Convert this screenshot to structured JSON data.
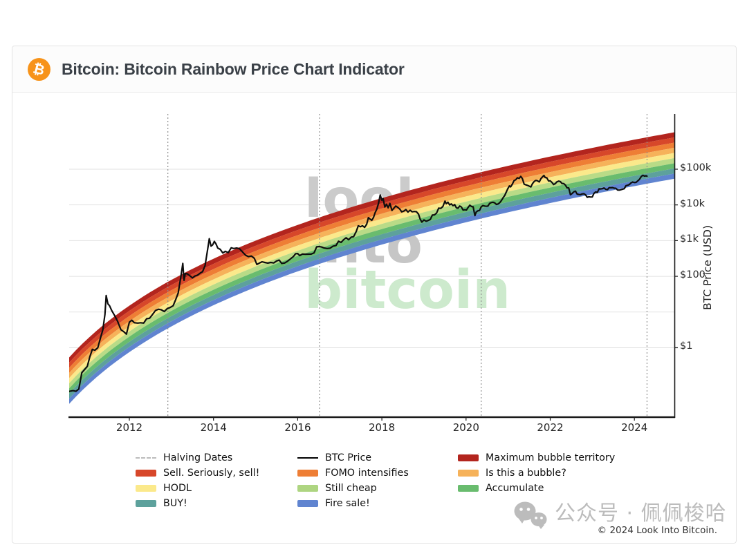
{
  "header": {
    "title": "Bitcoin: Bitcoin Rainbow Price Chart Indicator",
    "logo_glyph": "₿",
    "logo_color": "#f7931a"
  },
  "chart_data": {
    "type": "line",
    "title": "Bitcoin Rainbow Price Chart Indicator",
    "ylabel": "BTC Price (USD)",
    "y_scale": "log10",
    "x_range": [
      2010.57,
      2024.95
    ],
    "y_range_log10": [
      -1.925,
      6.547
    ],
    "grid": "horizontal-decades",
    "gridline_values": [
      1,
      10,
      100,
      1000,
      10000,
      100000
    ],
    "x_ticks": [
      {
        "label": "2012",
        "value": 2012
      },
      {
        "label": "2014",
        "value": 2014
      },
      {
        "label": "2016",
        "value": 2016
      },
      {
        "label": "2018",
        "value": 2018
      },
      {
        "label": "2020",
        "value": 2020
      },
      {
        "label": "2022",
        "value": 2022
      },
      {
        "label": "2024",
        "value": 2024
      }
    ],
    "y_ticks": [
      {
        "label": "$100k",
        "value": 100000
      },
      {
        "label": "$10k",
        "value": 10000
      },
      {
        "label": "$1k",
        "value": 1000
      },
      {
        "label": "$100",
        "value": 100
      },
      {
        "label": "$1",
        "value": 1
      }
    ],
    "halvings": {
      "label": "Halving Dates",
      "color": "#8f8f8f",
      "years": [
        2012.915,
        2016.52,
        2020.36,
        2024.3
      ]
    },
    "rainbow": {
      "genesis_year": 2009.008,
      "center_log10_price_coeffs": {
        "a": 0.289,
        "b": -1.625,
        "c": -2.25,
        "variable": "ln(days since genesis)"
      },
      "half_width_decades": 0.6507,
      "band_height_decades": 0.1446,
      "bands_top_to_bottom": [
        {
          "label": "Maximum bubble territory",
          "color": "#b3251e"
        },
        {
          "label": "Sell. Seriously, sell!",
          "color": "#d7472a"
        },
        {
          "label": "FOMO intensifies",
          "color": "#ee7e35"
        },
        {
          "label": "Is this a bubble?",
          "color": "#f6b25a"
        },
        {
          "label": "HODL",
          "color": "#fbe98b"
        },
        {
          "label": "Still cheap",
          "color": "#b9db87"
        },
        {
          "label": "Accumulate",
          "color": "#69bc6e"
        },
        {
          "label": "BUY!",
          "color": "#5da19c"
        },
        {
          "label": "Fire sale!",
          "color": "#6084d0"
        }
      ]
    },
    "btc_price": {
      "label": "BTC Price",
      "color": "#0e0e0e",
      "points": [
        [
          2010.58,
          0.06
        ],
        [
          2010.66,
          0.063
        ],
        [
          2010.73,
          0.06
        ],
        [
          2010.8,
          0.07
        ],
        [
          2010.87,
          0.2
        ],
        [
          2010.93,
          0.24
        ],
        [
          2011.0,
          0.3
        ],
        [
          2011.06,
          0.55
        ],
        [
          2011.12,
          0.9
        ],
        [
          2011.18,
          0.85
        ],
        [
          2011.25,
          1.0
        ],
        [
          2011.31,
          1.8
        ],
        [
          2011.37,
          3.2
        ],
        [
          2011.42,
          8.5
        ],
        [
          2011.45,
          29
        ],
        [
          2011.49,
          17
        ],
        [
          2011.53,
          15
        ],
        [
          2011.58,
          11
        ],
        [
          2011.65,
          8
        ],
        [
          2011.72,
          5.5
        ],
        [
          2011.8,
          3.2
        ],
        [
          2011.87,
          2.8
        ],
        [
          2011.93,
          2.4
        ],
        [
          2012.0,
          5.2
        ],
        [
          2012.06,
          5.9
        ],
        [
          2012.12,
          5.0
        ],
        [
          2012.2,
          4.9
        ],
        [
          2012.27,
          5.0
        ],
        [
          2012.34,
          4.9
        ],
        [
          2012.41,
          6.5
        ],
        [
          2012.48,
          6.7
        ],
        [
          2012.55,
          8.5
        ],
        [
          2012.62,
          11
        ],
        [
          2012.69,
          12
        ],
        [
          2012.76,
          11.5
        ],
        [
          2012.83,
          10.3
        ],
        [
          2012.9,
          12.5
        ],
        [
          2012.97,
          13.4
        ],
        [
          2013.04,
          15
        ],
        [
          2013.1,
          22
        ],
        [
          2013.16,
          34
        ],
        [
          2013.22,
          90
        ],
        [
          2013.27,
          230
        ],
        [
          2013.3,
          77
        ],
        [
          2013.33,
          120
        ],
        [
          2013.38,
          117
        ],
        [
          2013.44,
          103
        ],
        [
          2013.5,
          90
        ],
        [
          2013.56,
          102
        ],
        [
          2013.62,
          108
        ],
        [
          2013.68,
          122
        ],
        [
          2013.74,
          135
        ],
        [
          2013.8,
          200
        ],
        [
          2013.85,
          480
        ],
        [
          2013.9,
          1130
        ],
        [
          2013.94,
          700
        ],
        [
          2013.98,
          760
        ],
        [
          2014.02,
          950
        ],
        [
          2014.06,
          800
        ],
        [
          2014.1,
          620
        ],
        [
          2014.16,
          570
        ],
        [
          2014.22,
          450
        ],
        [
          2014.28,
          500
        ],
        [
          2014.35,
          460
        ],
        [
          2014.42,
          630
        ],
        [
          2014.48,
          600
        ],
        [
          2014.55,
          620
        ],
        [
          2014.62,
          590
        ],
        [
          2014.69,
          480
        ],
        [
          2014.76,
          390
        ],
        [
          2014.83,
          355
        ],
        [
          2014.9,
          370
        ],
        [
          2014.97,
          320
        ],
        [
          2015.03,
          215
        ],
        [
          2015.09,
          235
        ],
        [
          2015.15,
          255
        ],
        [
          2015.22,
          245
        ],
        [
          2015.29,
          235
        ],
        [
          2015.36,
          245
        ],
        [
          2015.43,
          237
        ],
        [
          2015.5,
          270
        ],
        [
          2015.56,
          285
        ],
        [
          2015.62,
          230
        ],
        [
          2015.69,
          236
        ],
        [
          2015.76,
          265
        ],
        [
          2015.83,
          310
        ],
        [
          2015.9,
          360
        ],
        [
          2015.95,
          430
        ],
        [
          2016.0,
          435
        ],
        [
          2016.05,
          380
        ],
        [
          2016.11,
          420
        ],
        [
          2016.18,
          415
        ],
        [
          2016.25,
          418
        ],
        [
          2016.32,
          420
        ],
        [
          2016.39,
          455
        ],
        [
          2016.45,
          670
        ],
        [
          2016.51,
          680
        ],
        [
          2016.57,
          660
        ],
        [
          2016.63,
          620
        ],
        [
          2016.7,
          600
        ],
        [
          2016.77,
          615
        ],
        [
          2016.84,
          700
        ],
        [
          2016.91,
          730
        ],
        [
          2016.97,
          960
        ],
        [
          2017.03,
          890
        ],
        [
          2017.09,
          1060
        ],
        [
          2017.15,
          1200
        ],
        [
          2017.21,
          1060
        ],
        [
          2017.27,
          1250
        ],
        [
          2017.33,
          1300
        ],
        [
          2017.39,
          1800
        ],
        [
          2017.44,
          2600
        ],
        [
          2017.49,
          2450
        ],
        [
          2017.54,
          2600
        ],
        [
          2017.59,
          2350
        ],
        [
          2017.64,
          2900
        ],
        [
          2017.68,
          4400
        ],
        [
          2017.72,
          4000
        ],
        [
          2017.76,
          3700
        ],
        [
          2017.8,
          4400
        ],
        [
          2017.84,
          6100
        ],
        [
          2017.88,
          7600
        ],
        [
          2017.92,
          11000
        ],
        [
          2017.96,
          19000
        ],
        [
          2018.0,
          13500
        ],
        [
          2018.03,
          15000
        ],
        [
          2018.07,
          8700
        ],
        [
          2018.11,
          10500
        ],
        [
          2018.15,
          8300
        ],
        [
          2018.19,
          11000
        ],
        [
          2018.24,
          7000
        ],
        [
          2018.29,
          8200
        ],
        [
          2018.33,
          9300
        ],
        [
          2018.38,
          8500
        ],
        [
          2018.43,
          7500
        ],
        [
          2018.47,
          6400
        ],
        [
          2018.52,
          6700
        ],
        [
          2018.57,
          7400
        ],
        [
          2018.62,
          6300
        ],
        [
          2018.67,
          7100
        ],
        [
          2018.72,
          6400
        ],
        [
          2018.77,
          6550
        ],
        [
          2018.82,
          6450
        ],
        [
          2018.87,
          5550
        ],
        [
          2018.91,
          4000
        ],
        [
          2018.95,
          3300
        ],
        [
          2019.0,
          3800
        ],
        [
          2019.05,
          3500
        ],
        [
          2019.1,
          3650
        ],
        [
          2019.15,
          3900
        ],
        [
          2019.2,
          5200
        ],
        [
          2019.25,
          5250
        ],
        [
          2019.3,
          5900
        ],
        [
          2019.35,
          8100
        ],
        [
          2019.4,
          8000
        ],
        [
          2019.45,
          9000
        ],
        [
          2019.5,
          12800
        ],
        [
          2019.53,
          10800
        ],
        [
          2019.57,
          11900
        ],
        [
          2019.61,
          10000
        ],
        [
          2019.65,
          10700
        ],
        [
          2019.69,
          9500
        ],
        [
          2019.73,
          10200
        ],
        [
          2019.77,
          8300
        ],
        [
          2019.81,
          8100
        ],
        [
          2019.85,
          9300
        ],
        [
          2019.89,
          8700
        ],
        [
          2019.93,
          7200
        ],
        [
          2019.97,
          7300
        ],
        [
          2020.01,
          7200
        ],
        [
          2020.05,
          8500
        ],
        [
          2020.09,
          9800
        ],
        [
          2020.13,
          9000
        ],
        [
          2020.17,
          8800
        ],
        [
          2020.21,
          5000
        ],
        [
          2020.24,
          6300
        ],
        [
          2020.28,
          6800
        ],
        [
          2020.32,
          7000
        ],
        [
          2020.36,
          8800
        ],
        [
          2020.4,
          9600
        ],
        [
          2020.44,
          9300
        ],
        [
          2020.48,
          9150
        ],
        [
          2020.52,
          9250
        ],
        [
          2020.56,
          11000
        ],
        [
          2020.6,
          11600
        ],
        [
          2020.64,
          11900
        ],
        [
          2020.68,
          11400
        ],
        [
          2020.72,
          10300
        ],
        [
          2020.76,
          10600
        ],
        [
          2020.8,
          11500
        ],
        [
          2020.84,
          13200
        ],
        [
          2020.88,
          15800
        ],
        [
          2020.92,
          18500
        ],
        [
          2020.96,
          23500
        ],
        [
          2021.0,
          29500
        ],
        [
          2021.03,
          34000
        ],
        [
          2021.06,
          32000
        ],
        [
          2021.1,
          38000
        ],
        [
          2021.14,
          48000
        ],
        [
          2021.18,
          50500
        ],
        [
          2021.22,
          57500
        ],
        [
          2021.26,
          55000
        ],
        [
          2021.3,
          63000
        ],
        [
          2021.34,
          54000
        ],
        [
          2021.38,
          38000
        ],
        [
          2021.42,
          36500
        ],
        [
          2021.46,
          35200
        ],
        [
          2021.5,
          33600
        ],
        [
          2021.54,
          31800
        ],
        [
          2021.58,
          39500
        ],
        [
          2021.62,
          45500
        ],
        [
          2021.66,
          48500
        ],
        [
          2021.7,
          47200
        ],
        [
          2021.74,
          44000
        ],
        [
          2021.78,
          54500
        ],
        [
          2021.82,
          61500
        ],
        [
          2021.85,
          67000
        ],
        [
          2021.88,
          58500
        ],
        [
          2021.92,
          57200
        ],
        [
          2021.96,
          46800
        ],
        [
          2022.0,
          47300
        ],
        [
          2022.04,
          42800
        ],
        [
          2022.08,
          37200
        ],
        [
          2022.12,
          39300
        ],
        [
          2022.16,
          44200
        ],
        [
          2022.2,
          46500
        ],
        [
          2022.24,
          45100
        ],
        [
          2022.28,
          40000
        ],
        [
          2022.32,
          39500
        ],
        [
          2022.36,
          36000
        ],
        [
          2022.4,
          30100
        ],
        [
          2022.44,
          29700
        ],
        [
          2022.48,
          19200
        ],
        [
          2022.52,
          20800
        ],
        [
          2022.56,
          23200
        ],
        [
          2022.6,
          24300
        ],
        [
          2022.64,
          20100
        ],
        [
          2022.68,
          19600
        ],
        [
          2022.72,
          19400
        ],
        [
          2022.76,
          20300
        ],
        [
          2022.8,
          20600
        ],
        [
          2022.84,
          19100
        ],
        [
          2022.88,
          16300
        ],
        [
          2022.92,
          16900
        ],
        [
          2022.96,
          16600
        ],
        [
          2023.0,
          16700
        ],
        [
          2023.04,
          21100
        ],
        [
          2023.08,
          23200
        ],
        [
          2023.12,
          22300
        ],
        [
          2023.16,
          28200
        ],
        [
          2023.2,
          28000
        ],
        [
          2023.24,
          28500
        ],
        [
          2023.28,
          29800
        ],
        [
          2023.32,
          27200
        ],
        [
          2023.36,
          26700
        ],
        [
          2023.4,
          30400
        ],
        [
          2023.44,
          30200
        ],
        [
          2023.48,
          30500
        ],
        [
          2023.52,
          29400
        ],
        [
          2023.56,
          29200
        ],
        [
          2023.6,
          26100
        ],
        [
          2023.64,
          25900
        ],
        [
          2023.68,
          26600
        ],
        [
          2023.72,
          27600
        ],
        [
          2023.76,
          28400
        ],
        [
          2023.8,
          34600
        ],
        [
          2023.84,
          35500
        ],
        [
          2023.88,
          37200
        ],
        [
          2023.92,
          41300
        ],
        [
          2023.96,
          43800
        ],
        [
          2024.0,
          42300
        ],
        [
          2024.04,
          42900
        ],
        [
          2024.08,
          47100
        ],
        [
          2024.12,
          52000
        ],
        [
          2024.16,
          61500
        ],
        [
          2024.2,
          67800
        ],
        [
          2024.24,
          63900
        ],
        [
          2024.28,
          65300
        ],
        [
          2024.3,
          63800
        ]
      ]
    },
    "watermark_lines": [
      {
        "text": "look",
        "color": "#cbcbcb"
      },
      {
        "text": "into",
        "color": "#c6c6c6"
      },
      {
        "text": "bitcoin",
        "color": "#cdeacd"
      }
    ]
  },
  "legend": {
    "columns": [
      [
        {
          "label": "Halving Dates",
          "style": "dash",
          "color": "#bbbbbb"
        },
        {
          "label": "Sell. Seriously, sell!",
          "style": "band",
          "color": "#d7472a"
        },
        {
          "label": "HODL",
          "style": "band",
          "color": "#fbe98b"
        },
        {
          "label": "BUY!",
          "style": "band",
          "color": "#5da19c"
        }
      ],
      [
        {
          "label": "BTC Price",
          "style": "line",
          "color": "#000000"
        },
        {
          "label": "FOMO intensifies",
          "style": "band",
          "color": "#ee7e35"
        },
        {
          "label": "Still cheap",
          "style": "band",
          "color": "#aed581"
        },
        {
          "label": "Fire sale!",
          "style": "band",
          "color": "#6084d0"
        }
      ],
      [
        {
          "label": "Maximum bubble territory",
          "style": "band",
          "color": "#b3251e"
        },
        {
          "label": "Is this a bubble?",
          "style": "band",
          "color": "#f6b25a"
        },
        {
          "label": "Accumulate",
          "style": "band",
          "color": "#69bc6e"
        }
      ]
    ]
  },
  "footer": {
    "copyright": "© 2024 Look Into Bitcoin.",
    "wechat_watermark": "公众号 · 佩佩梭哈"
  }
}
